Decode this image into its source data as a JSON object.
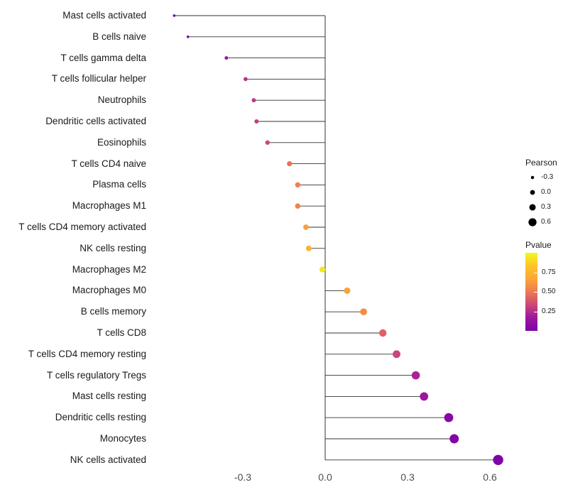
{
  "figure": {
    "background": "#ffffff"
  },
  "chart_data": {
    "type": "scatter",
    "variant": "lollipop",
    "orientation": "horizontal",
    "title": "",
    "xlabel": "",
    "ylabel": "",
    "xlim": [
      -0.62,
      0.68
    ],
    "grid": "off",
    "baseline": 0,
    "x_ticks": [
      "-0.3",
      "0.0",
      "0.3",
      "0.6"
    ],
    "x_tick_values": [
      -0.3,
      0.0,
      0.3,
      0.6
    ],
    "points": [
      {
        "label": "Mast cells activated",
        "pearson": -0.55,
        "color": "#6100a7"
      },
      {
        "label": "B cells naive",
        "pearson": -0.5,
        "color": "#7301a8"
      },
      {
        "label": "T cells gamma delta",
        "pearson": -0.36,
        "color": "#9c179e"
      },
      {
        "label": "T cells follicular helper",
        "pearson": -0.29,
        "color": "#b52f8c"
      },
      {
        "label": "Neutrophils",
        "pearson": -0.26,
        "color": "#bd3786"
      },
      {
        "label": "Dendritic cells activated",
        "pearson": -0.25,
        "color": "#c33d80"
      },
      {
        "label": "Eosinophils",
        "pearson": -0.21,
        "color": "#cc4778"
      },
      {
        "label": "T cells CD4 naive",
        "pearson": -0.13,
        "color": "#e97158"
      },
      {
        "label": "Plasma cells",
        "pearson": -0.1,
        "color": "#f0804e"
      },
      {
        "label": "Macrophages M1",
        "pearson": -0.1,
        "color": "#f0824d"
      },
      {
        "label": "T cells CD4 memory activated",
        "pearson": -0.07,
        "color": "#f9a13c"
      },
      {
        "label": "NK cells resting",
        "pearson": -0.06,
        "color": "#fbb32e"
      },
      {
        "label": "Macrophages M2",
        "pearson": -0.01,
        "color": "#f2e526"
      },
      {
        "label": "Macrophages M0",
        "pearson": 0.08,
        "color": "#f9a43a"
      },
      {
        "label": "B cells memory",
        "pearson": 0.14,
        "color": "#f28c49"
      },
      {
        "label": "T cells CD8",
        "pearson": 0.21,
        "color": "#de6066"
      },
      {
        "label": "T cells CD4 memory resting",
        "pearson": 0.26,
        "color": "#ca457b"
      },
      {
        "label": "T cells regulatory Tregs",
        "pearson": 0.33,
        "color": "#aa2395"
      },
      {
        "label": "Mast cells resting",
        "pearson": 0.36,
        "color": "#9c179e"
      },
      {
        "label": "Dendritic cells resting",
        "pearson": 0.45,
        "color": "#8707a6"
      },
      {
        "label": "Monocytes",
        "pearson": 0.47,
        "color": "#8205a7"
      },
      {
        "label": "NK cells activated",
        "pearson": 0.63,
        "color": "#7e03a8"
      }
    ],
    "legend": {
      "position": "right",
      "size": {
        "title": "Pearson",
        "entries": [
          "-0.3",
          "0.0",
          "0.3",
          "0.6"
        ],
        "values": [
          -0.3,
          0.0,
          0.3,
          0.6
        ]
      },
      "color": {
        "title": "Pvalue",
        "ticks": [
          "0.75",
          "0.50",
          "0.25"
        ],
        "gradient": [
          "#f0f921",
          "#fdc527",
          "#fca636",
          "#ed7953",
          "#cc4778",
          "#9c179e",
          "#7e03a8"
        ]
      }
    },
    "styles": {
      "stem_color": "#333333",
      "legend_dot_color": "#000000",
      "text_color": "#1a1a1a",
      "axis_tick_color": "#4d4d4d",
      "background": "#ffffff"
    }
  }
}
